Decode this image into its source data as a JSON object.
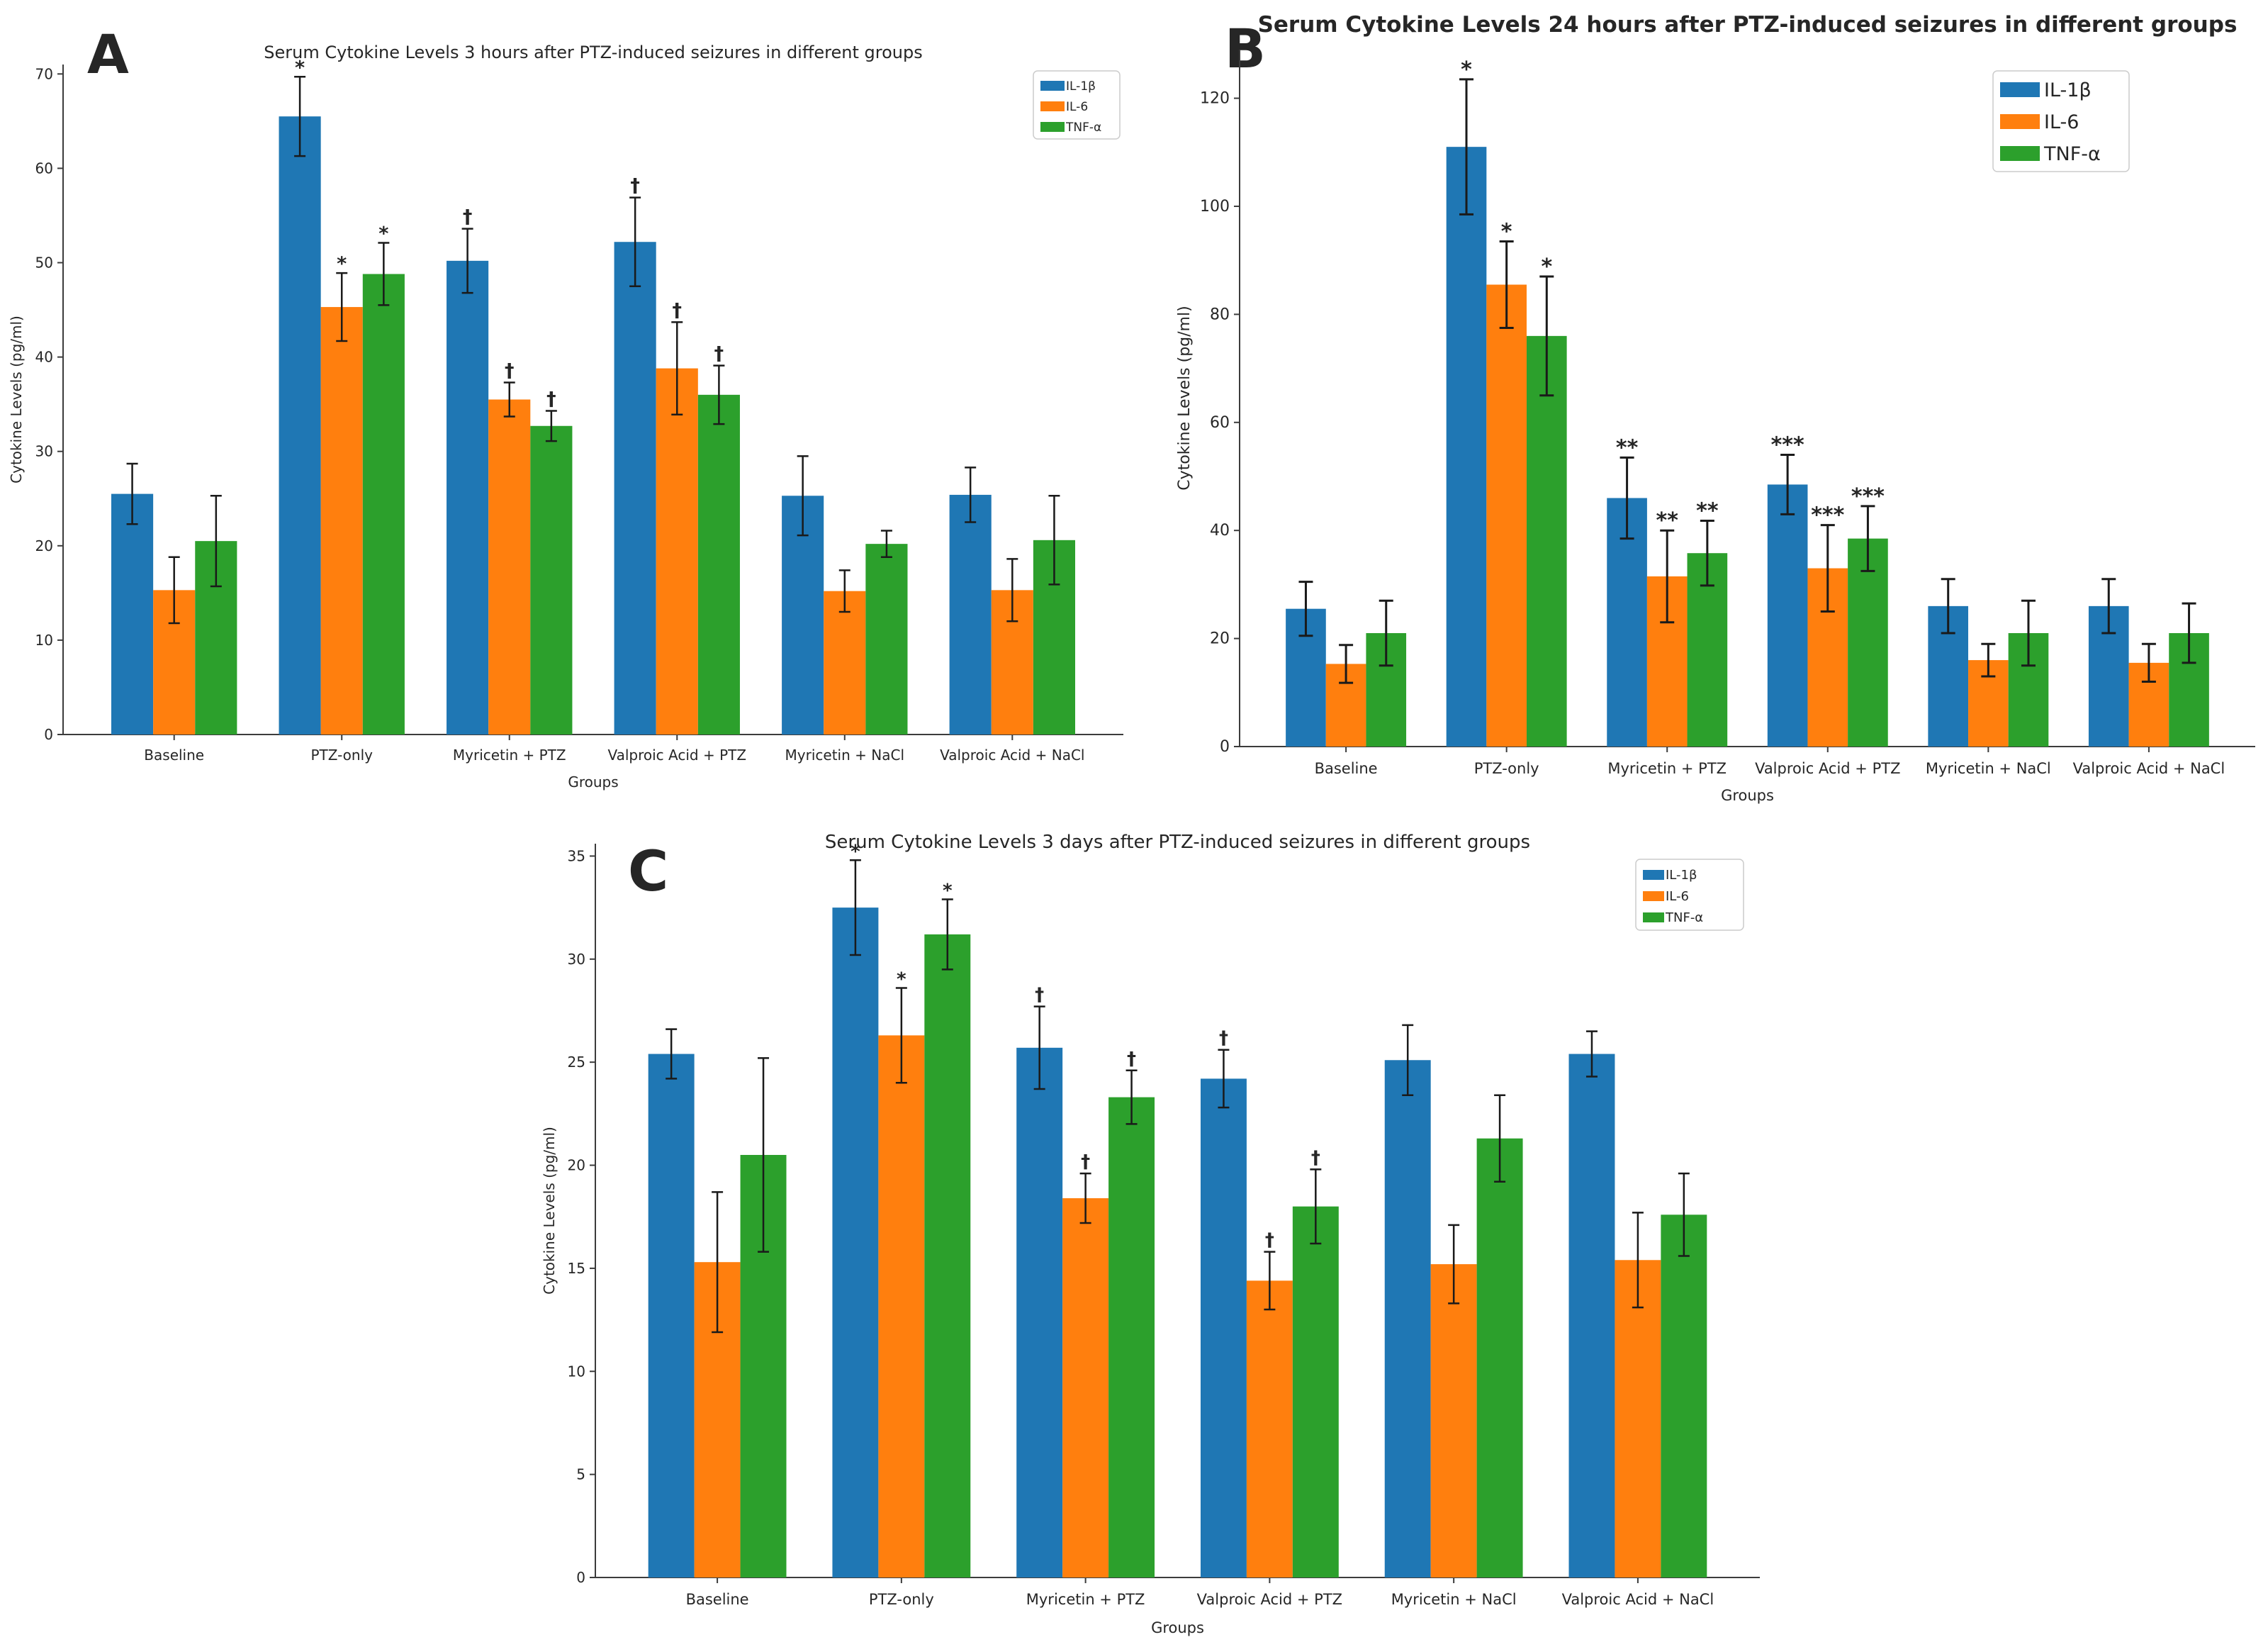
{
  "figure": {
    "background": "#ffffff",
    "text_color": "#262626",
    "spine_color": "#3c3c3c",
    "errorbar_color": "#1a1a1a",
    "legend_border_color": "#cccccc"
  },
  "chart_data": [
    {
      "id": "A",
      "panel_label": "A",
      "type": "bar",
      "title": "Serum Cytokine Levels 3 hours after PTZ-induced seizures in different groups",
      "xlabel": "Groups",
      "ylabel": "Cytokine Levels (pg/ml)",
      "categories": [
        "Baseline",
        "PTZ-only",
        "Myricetin + PTZ",
        "Valproic Acid + PTZ",
        "Myricetin + NaCl",
        "Valproic Acid + NaCl"
      ],
      "series": [
        {
          "name": "IL-1β",
          "color": "#1f77b4",
          "values": [
            25.5,
            65.5,
            50.2,
            52.2,
            25.3,
            25.4
          ],
          "errors": [
            3.2,
            4.2,
            3.4,
            4.7,
            4.2,
            2.9
          ],
          "annotations": [
            "",
            "*",
            "†",
            "†",
            "",
            ""
          ]
        },
        {
          "name": "IL-6",
          "color": "#ff7f0e",
          "values": [
            15.3,
            45.3,
            35.5,
            38.8,
            15.2,
            15.3
          ],
          "errors": [
            3.5,
            3.6,
            1.8,
            4.9,
            2.2,
            3.3
          ],
          "annotations": [
            "",
            "*",
            "†",
            "†",
            "",
            ""
          ]
        },
        {
          "name": "TNF-α",
          "color": "#2ca02c",
          "values": [
            20.5,
            48.8,
            32.7,
            36.0,
            20.2,
            20.6
          ],
          "errors": [
            4.8,
            3.3,
            1.6,
            3.1,
            1.4,
            4.7
          ],
          "annotations": [
            "",
            "*",
            "†",
            "†",
            "",
            ""
          ]
        }
      ],
      "ylim": [
        0,
        71
      ],
      "yticks": [
        0,
        10,
        20,
        30,
        40,
        50,
        60,
        70
      ],
      "legend_position": "upper right",
      "grid": false
    },
    {
      "id": "B",
      "panel_label": "B",
      "type": "bar",
      "title": "Serum Cytokine Levels 24 hours after PTZ-induced seizures in different groups",
      "xlabel": "Groups",
      "ylabel": "Cytokine Levels (pg/ml)",
      "categories": [
        "Baseline",
        "PTZ-only",
        "Myricetin + PTZ",
        "Valproic Acid + PTZ",
        "Myricetin + NaCl",
        "Valproic Acid + NaCl"
      ],
      "series": [
        {
          "name": "IL-1β",
          "color": "#1f77b4",
          "values": [
            25.5,
            111.0,
            46.0,
            48.5,
            26.0,
            26.0
          ],
          "errors": [
            5.0,
            12.5,
            7.5,
            5.5,
            5.0,
            5.0
          ],
          "annotations": [
            "",
            "*",
            "**",
            "***",
            "",
            ""
          ]
        },
        {
          "name": "IL-6",
          "color": "#ff7f0e",
          "values": [
            15.3,
            85.5,
            31.5,
            33.0,
            16.0,
            15.5
          ],
          "errors": [
            3.5,
            8.0,
            8.5,
            8.0,
            3.0,
            3.5
          ],
          "annotations": [
            "",
            "*",
            "**",
            "***",
            "",
            ""
          ]
        },
        {
          "name": "TNF-α",
          "color": "#2ca02c",
          "values": [
            21.0,
            76.0,
            35.8,
            38.5,
            21.0,
            21.0
          ],
          "errors": [
            6.0,
            11.0,
            6.0,
            6.0,
            6.0,
            5.5
          ],
          "annotations": [
            "",
            "*",
            "**",
            "***",
            "",
            ""
          ]
        }
      ],
      "ylim": [
        0,
        129
      ],
      "yticks": [
        0,
        20,
        40,
        60,
        80,
        100,
        120
      ],
      "legend_position": "upper right",
      "grid": false
    },
    {
      "id": "C",
      "panel_label": "C",
      "type": "bar",
      "title": "Serum Cytokine Levels 3 days after PTZ-induced seizures in different groups",
      "xlabel": "Groups",
      "ylabel": "Cytokine Levels (pg/ml)",
      "categories": [
        "Baseline",
        "PTZ-only",
        "Myricetin + PTZ",
        "Valproic Acid + PTZ",
        "Myricetin + NaCl",
        "Valproic Acid + NaCl"
      ],
      "series": [
        {
          "name": "IL-1β",
          "color": "#1f77b4",
          "values": [
            25.4,
            32.5,
            25.7,
            24.2,
            25.1,
            25.4
          ],
          "errors": [
            1.2,
            2.3,
            2.0,
            1.4,
            1.7,
            1.1
          ],
          "annotations": [
            "",
            "*",
            "†",
            "†",
            "",
            ""
          ]
        },
        {
          "name": "IL-6",
          "color": "#ff7f0e",
          "values": [
            15.3,
            26.3,
            18.4,
            14.4,
            15.2,
            15.4
          ],
          "errors": [
            3.4,
            2.3,
            1.2,
            1.4,
            1.9,
            2.3
          ],
          "annotations": [
            "",
            "*",
            "†",
            "†",
            "",
            ""
          ]
        },
        {
          "name": "TNF-α",
          "color": "#2ca02c",
          "values": [
            20.5,
            31.2,
            23.3,
            18.0,
            21.3,
            17.6
          ],
          "errors": [
            4.7,
            1.7,
            1.3,
            1.8,
            2.1,
            2.0
          ],
          "annotations": [
            "",
            "*",
            "†",
            "†",
            "",
            ""
          ]
        }
      ],
      "ylim": [
        0,
        35.6
      ],
      "yticks": [
        0,
        5,
        10,
        15,
        20,
        25,
        30,
        35
      ],
      "legend_position": "upper right",
      "grid": false
    }
  ]
}
